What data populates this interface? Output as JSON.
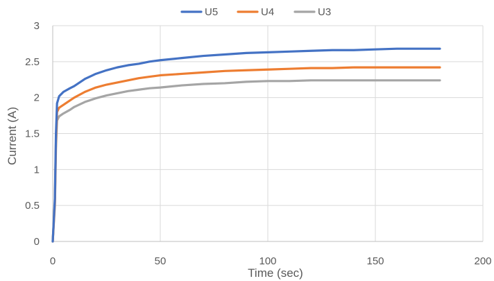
{
  "chart_data": {
    "type": "line",
    "title": "",
    "xlabel": "Time (sec)",
    "ylabel": "Current (A)",
    "xlim": [
      0,
      200
    ],
    "ylim": [
      0,
      3
    ],
    "xticks": [
      0,
      50,
      100,
      150,
      200
    ],
    "yticks": [
      0,
      0.5,
      1,
      1.5,
      2,
      2.5,
      3
    ],
    "xtick_labels": [
      "0",
      "50",
      "100",
      "150",
      "200"
    ],
    "ytick_labels": [
      "0",
      "0.5",
      "1",
      "1.5",
      "2",
      "2.5",
      "3"
    ],
    "grid": true,
    "legend_position": "top-center",
    "series": [
      {
        "name": "U5",
        "color": "#4472C4",
        "x": [
          0,
          1,
          1.5,
          2,
          3,
          5,
          8,
          10,
          15,
          20,
          25,
          30,
          35,
          40,
          45,
          50,
          60,
          70,
          80,
          90,
          100,
          110,
          120,
          130,
          140,
          150,
          160,
          170,
          180
        ],
        "y": [
          0,
          0.6,
          1.5,
          1.92,
          2.02,
          2.08,
          2.13,
          2.16,
          2.26,
          2.33,
          2.38,
          2.42,
          2.45,
          2.47,
          2.5,
          2.52,
          2.55,
          2.58,
          2.6,
          2.62,
          2.63,
          2.64,
          2.65,
          2.66,
          2.66,
          2.67,
          2.68,
          2.68,
          2.68
        ]
      },
      {
        "name": "U4",
        "color": "#ED7D31",
        "x": [
          0,
          1,
          1.5,
          2,
          3,
          5,
          8,
          10,
          15,
          20,
          25,
          30,
          35,
          40,
          45,
          50,
          60,
          70,
          80,
          90,
          100,
          110,
          120,
          130,
          140,
          150,
          160,
          170,
          180
        ],
        "y": [
          0,
          0.55,
          1.4,
          1.8,
          1.86,
          1.9,
          1.96,
          2.0,
          2.08,
          2.14,
          2.18,
          2.21,
          2.24,
          2.27,
          2.29,
          2.31,
          2.33,
          2.35,
          2.37,
          2.38,
          2.39,
          2.4,
          2.41,
          2.41,
          2.42,
          2.42,
          2.42,
          2.42,
          2.42
        ]
      },
      {
        "name": "U3",
        "color": "#A5A5A5",
        "x": [
          0,
          1,
          1.5,
          2,
          3,
          5,
          8,
          10,
          15,
          20,
          25,
          30,
          35,
          40,
          45,
          50,
          60,
          70,
          80,
          90,
          100,
          110,
          120,
          130,
          140,
          150,
          160,
          170,
          180
        ],
        "y": [
          0,
          0.5,
          1.3,
          1.68,
          1.74,
          1.78,
          1.83,
          1.87,
          1.94,
          1.99,
          2.03,
          2.06,
          2.09,
          2.11,
          2.13,
          2.14,
          2.17,
          2.19,
          2.2,
          2.22,
          2.23,
          2.23,
          2.24,
          2.24,
          2.24,
          2.24,
          2.24,
          2.24,
          2.24
        ]
      }
    ]
  }
}
